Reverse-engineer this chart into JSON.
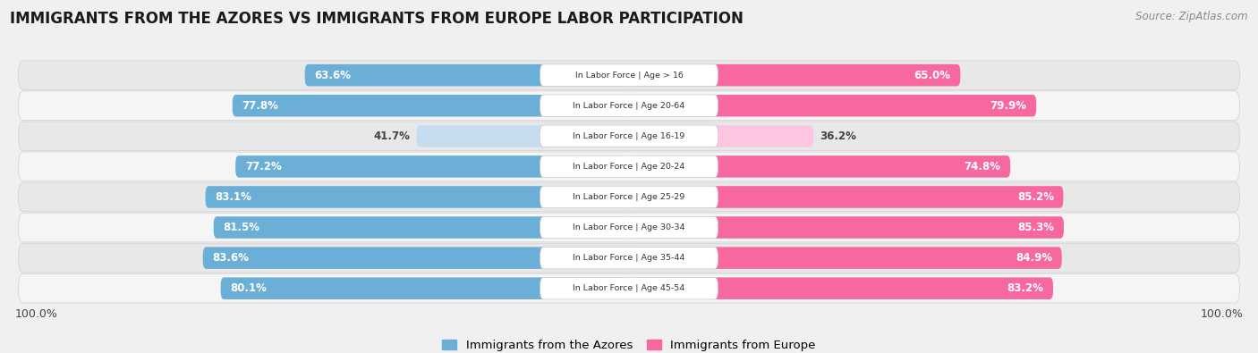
{
  "title": "IMMIGRANTS FROM THE AZORES VS IMMIGRANTS FROM EUROPE LABOR PARTICIPATION",
  "source": "Source: ZipAtlas.com",
  "categories": [
    "In Labor Force | Age > 16",
    "In Labor Force | Age 20-64",
    "In Labor Force | Age 16-19",
    "In Labor Force | Age 20-24",
    "In Labor Force | Age 25-29",
    "In Labor Force | Age 30-34",
    "In Labor Force | Age 35-44",
    "In Labor Force | Age 45-54"
  ],
  "azores_values": [
    63.6,
    77.8,
    41.7,
    77.2,
    83.1,
    81.5,
    83.6,
    80.1
  ],
  "europe_values": [
    65.0,
    79.9,
    36.2,
    74.8,
    85.2,
    85.3,
    84.9,
    83.2
  ],
  "azores_color": "#6baed6",
  "azores_light_color": "#c6dcef",
  "europe_color": "#f768a1",
  "europe_light_color": "#fcc5e0",
  "background_color": "#f0f0f0",
  "row_colors": [
    "#e8e8e8",
    "#f5f5f5"
  ],
  "center_label_bg": "#ffffff",
  "title_fontsize": 12,
  "legend_fontsize": 9.5,
  "value_fontsize": 8.5
}
